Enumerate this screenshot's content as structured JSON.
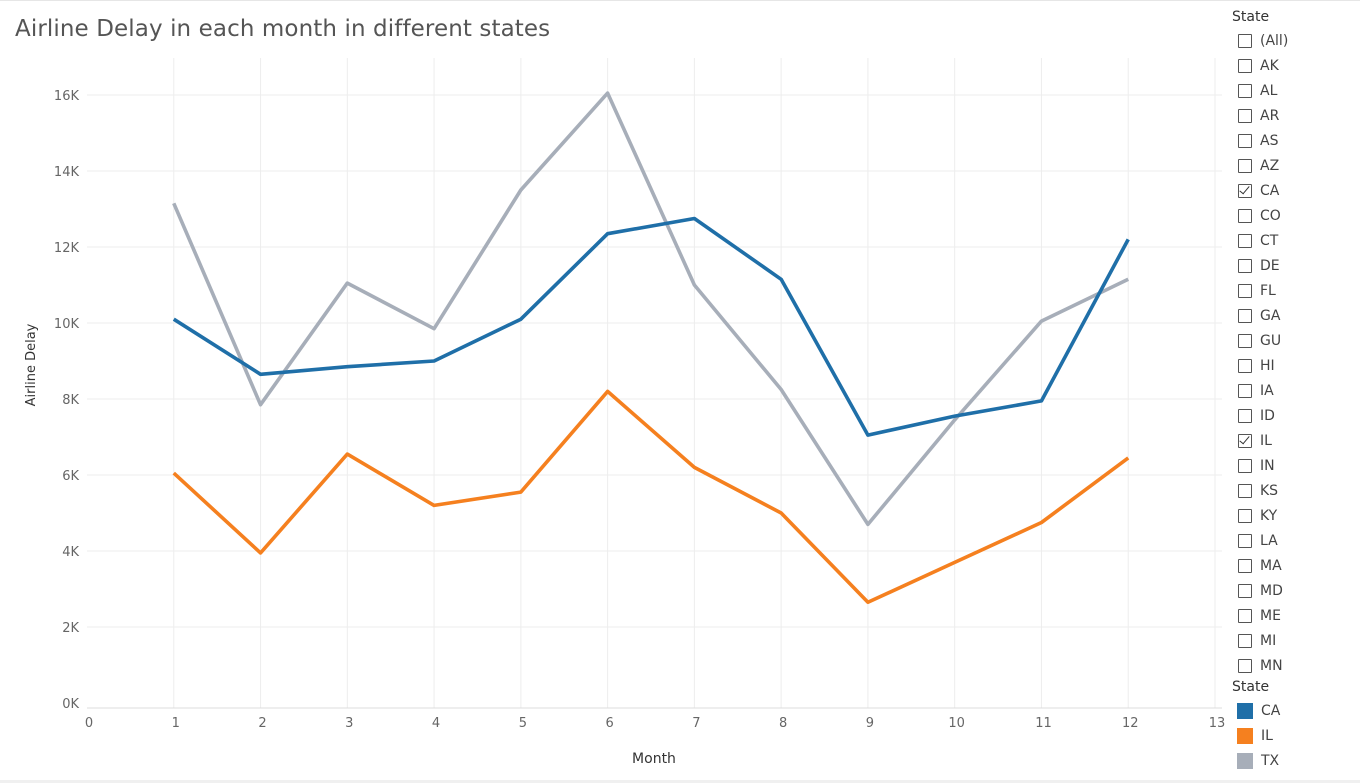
{
  "chart_data": {
    "type": "line",
    "title": "Airline Delay in each month in different states",
    "xlabel": "Month",
    "ylabel": "Airline Delay",
    "xlim": [
      0,
      13
    ],
    "ylim": [
      0,
      16500
    ],
    "x_ticks": [
      0,
      1,
      2,
      3,
      4,
      5,
      6,
      7,
      8,
      9,
      10,
      11,
      12,
      13
    ],
    "y_ticks": [
      {
        "value": 0,
        "label": "0K"
      },
      {
        "value": 2000,
        "label": "2K"
      },
      {
        "value": 4000,
        "label": "4K"
      },
      {
        "value": 6000,
        "label": "6K"
      },
      {
        "value": 8000,
        "label": "8K"
      },
      {
        "value": 10000,
        "label": "10K"
      },
      {
        "value": 12000,
        "label": "12K"
      },
      {
        "value": 14000,
        "label": "14K"
      },
      {
        "value": 16000,
        "label": "16K"
      }
    ],
    "grid": true,
    "x": [
      1,
      2,
      3,
      4,
      5,
      6,
      7,
      8,
      9,
      10,
      11,
      12
    ],
    "series": [
      {
        "name": "CA",
        "color": "#1f6fa8",
        "values": [
          10100,
          8650,
          8850,
          9000,
          10100,
          12350,
          12750,
          11150,
          7050,
          7550,
          7950,
          12200
        ]
      },
      {
        "name": "IL",
        "color": "#f5801f",
        "values": [
          6050,
          3950,
          6550,
          5200,
          5550,
          8200,
          6200,
          5000,
          2650,
          3700,
          4750,
          6450
        ]
      },
      {
        "name": "TX",
        "color": "#a7aeb9",
        "values": [
          13150,
          7850,
          11050,
          9850,
          13500,
          16050,
          11000,
          8250,
          4700,
          7450,
          10050,
          11150
        ]
      }
    ]
  },
  "filter": {
    "title": "State",
    "items": [
      {
        "label": "(All)",
        "checked": false
      },
      {
        "label": "AK",
        "checked": false
      },
      {
        "label": "AL",
        "checked": false
      },
      {
        "label": "AR",
        "checked": false
      },
      {
        "label": "AS",
        "checked": false
      },
      {
        "label": "AZ",
        "checked": false
      },
      {
        "label": "CA",
        "checked": true
      },
      {
        "label": "CO",
        "checked": false
      },
      {
        "label": "CT",
        "checked": false
      },
      {
        "label": "DE",
        "checked": false
      },
      {
        "label": "FL",
        "checked": false
      },
      {
        "label": "GA",
        "checked": false
      },
      {
        "label": "GU",
        "checked": false
      },
      {
        "label": "HI",
        "checked": false
      },
      {
        "label": "IA",
        "checked": false
      },
      {
        "label": "ID",
        "checked": false
      },
      {
        "label": "IL",
        "checked": true
      },
      {
        "label": "IN",
        "checked": false
      },
      {
        "label": "KS",
        "checked": false
      },
      {
        "label": "KY",
        "checked": false
      },
      {
        "label": "LA",
        "checked": false
      },
      {
        "label": "MA",
        "checked": false
      },
      {
        "label": "MD",
        "checked": false
      },
      {
        "label": "ME",
        "checked": false
      },
      {
        "label": "MI",
        "checked": false
      },
      {
        "label": "MN",
        "checked": false
      }
    ]
  },
  "legend": {
    "title": "State",
    "items": [
      {
        "label": "CA",
        "color": "#1f6fa8"
      },
      {
        "label": "IL",
        "color": "#f5801f"
      },
      {
        "label": "TX",
        "color": "#a7aeb9"
      }
    ]
  }
}
